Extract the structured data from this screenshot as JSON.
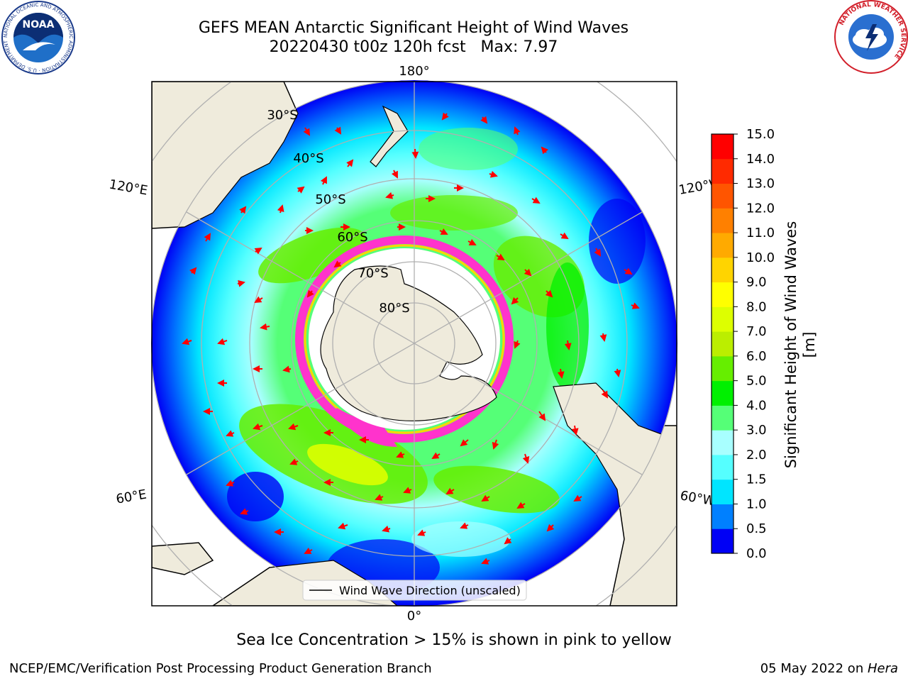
{
  "header": {
    "title_line1": "GEFS MEAN Antarctic Significant Height of Wind Waves",
    "title_line2": "20220430 t00z 120h fcst   Max: 7.97"
  },
  "logos": {
    "noaa_text": "NOAA",
    "noaa_ring_text": "NATIONAL OCEANIC AND ATMOSPHERIC ADMINISTRATION · U.S. DEPARTMENT OF COMMERCE",
    "nws_ring_text": "NATIONAL WEATHER SERVICE"
  },
  "map": {
    "projection": "south-polar-stereographic",
    "longitude_labels": {
      "top": "180°",
      "bottom": "0°",
      "upper_left": "120°E",
      "lower_left": "60°E",
      "upper_right": "120°W",
      "lower_right": "60°W"
    },
    "latitude_labels": [
      "30°S",
      "40°S",
      "50°S",
      "60°S",
      "70°S",
      "80°S"
    ],
    "legend": "Wind Wave Direction (unscaled)",
    "arrow_color": "#ff0000"
  },
  "colorbar": {
    "label": "Significant Height of Wind Waves [m]",
    "ticks": [
      "0.0",
      "0.5",
      "1.0",
      "1.5",
      "2.0",
      "3.0",
      "4.0",
      "5.0",
      "6.0",
      "7.0",
      "8.0",
      "9.0",
      "10.0",
      "11.0",
      "12.0",
      "13.0",
      "14.0",
      "15.0"
    ],
    "colors": [
      "#0000f5",
      "#0080ff",
      "#00e5ff",
      "#55ffff",
      "#a8ffff",
      "#55ff77",
      "#00f000",
      "#66ee00",
      "#bbee00",
      "#ddff00",
      "#ffff00",
      "#ffd400",
      "#ffaa00",
      "#ff8000",
      "#ff5500",
      "#ff2a00",
      "#ff0000"
    ]
  },
  "caption": "Sea Ice Concentration > 15% is shown in pink to yellow",
  "footer": {
    "left": "NCEP/EMC/Verification Post Processing Product Generation Branch",
    "right_date": "05 May 2022 on ",
    "right_host": "Hera"
  }
}
